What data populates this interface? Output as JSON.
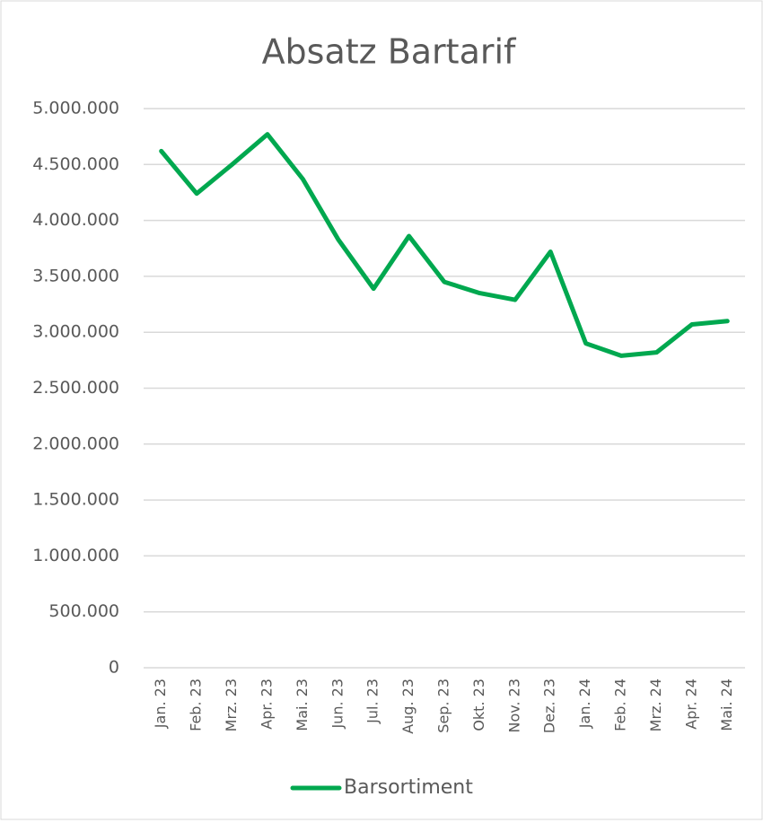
{
  "chart_data": {
    "type": "line",
    "title": "Absatz Bartarif",
    "categories": [
      "Jan. 23",
      "Feb. 23",
      "Mrz. 23",
      "Apr. 23",
      "Mai. 23",
      "Jun. 23",
      "Jul. 23",
      "Aug. 23",
      "Sep. 23",
      "Okt. 23",
      "Nov. 23",
      "Dez. 23",
      "Jan. 24",
      "Feb. 24",
      "Mrz. 24",
      "Apr. 24",
      "Mai. 24"
    ],
    "series": [
      {
        "name": "Barsortiment",
        "color": "#00a84f",
        "values": [
          4620000,
          4240000,
          4500000,
          4770000,
          4370000,
          3830000,
          3390000,
          3860000,
          3450000,
          3350000,
          3290000,
          3720000,
          2900000,
          2790000,
          2820000,
          3070000,
          3100000
        ]
      }
    ],
    "ylim": [
      0,
      5000000
    ],
    "yticks": [
      0,
      {
        "value": 500000,
        "label": "500.000"
      },
      {
        "value": 1000000,
        "label": "1.000.000"
      },
      {
        "value": 1500000,
        "label": "1.500.000"
      },
      {
        "value": 2000000,
        "label": "2.000.000"
      },
      {
        "value": 2500000,
        "label": "2.500.000"
      },
      {
        "value": 3000000,
        "label": "3.000.000"
      },
      {
        "value": 3500000,
        "label": "3.500.000"
      },
      {
        "value": 4000000,
        "label": "4.000.000"
      },
      {
        "value": 4500000,
        "label": "4.500.000"
      },
      {
        "value": 5000000,
        "label": "5.000.000"
      }
    ],
    "grid": true,
    "legend": "bottom"
  }
}
